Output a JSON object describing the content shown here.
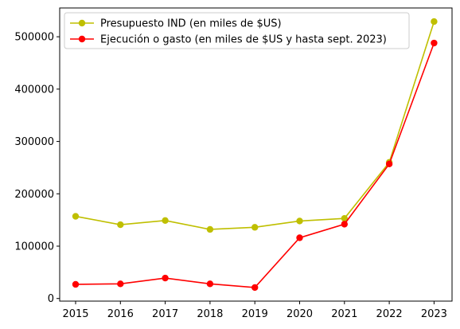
{
  "chart_data": {
    "type": "line",
    "categories": [
      "2015",
      "2016",
      "2017",
      "2018",
      "2019",
      "2020",
      "2021",
      "2022",
      "2023"
    ],
    "series": [
      {
        "name": "Presupuesto IND (en miles de $US)",
        "color": "#bfbf00",
        "values": [
          157000,
          141000,
          149000,
          132000,
          136000,
          148000,
          153000,
          260000,
          529000
        ]
      },
      {
        "name": "Ejecución o gasto (en miles de $US y hasta sept. 2023)",
        "color": "#ff0000",
        "values": [
          27000,
          28000,
          39000,
          28000,
          21000,
          116000,
          142000,
          257000,
          488000
        ]
      }
    ],
    "yticks": [
      0,
      100000,
      200000,
      300000,
      400000,
      500000
    ],
    "ytick_labels": [
      "0",
      "100000",
      "200000",
      "300000",
      "400000",
      "500000"
    ],
    "ylim": [
      -5000,
      555000
    ],
    "title": "",
    "xlabel": "",
    "ylabel": "",
    "grid": false,
    "legend_position": "upper-left"
  }
}
